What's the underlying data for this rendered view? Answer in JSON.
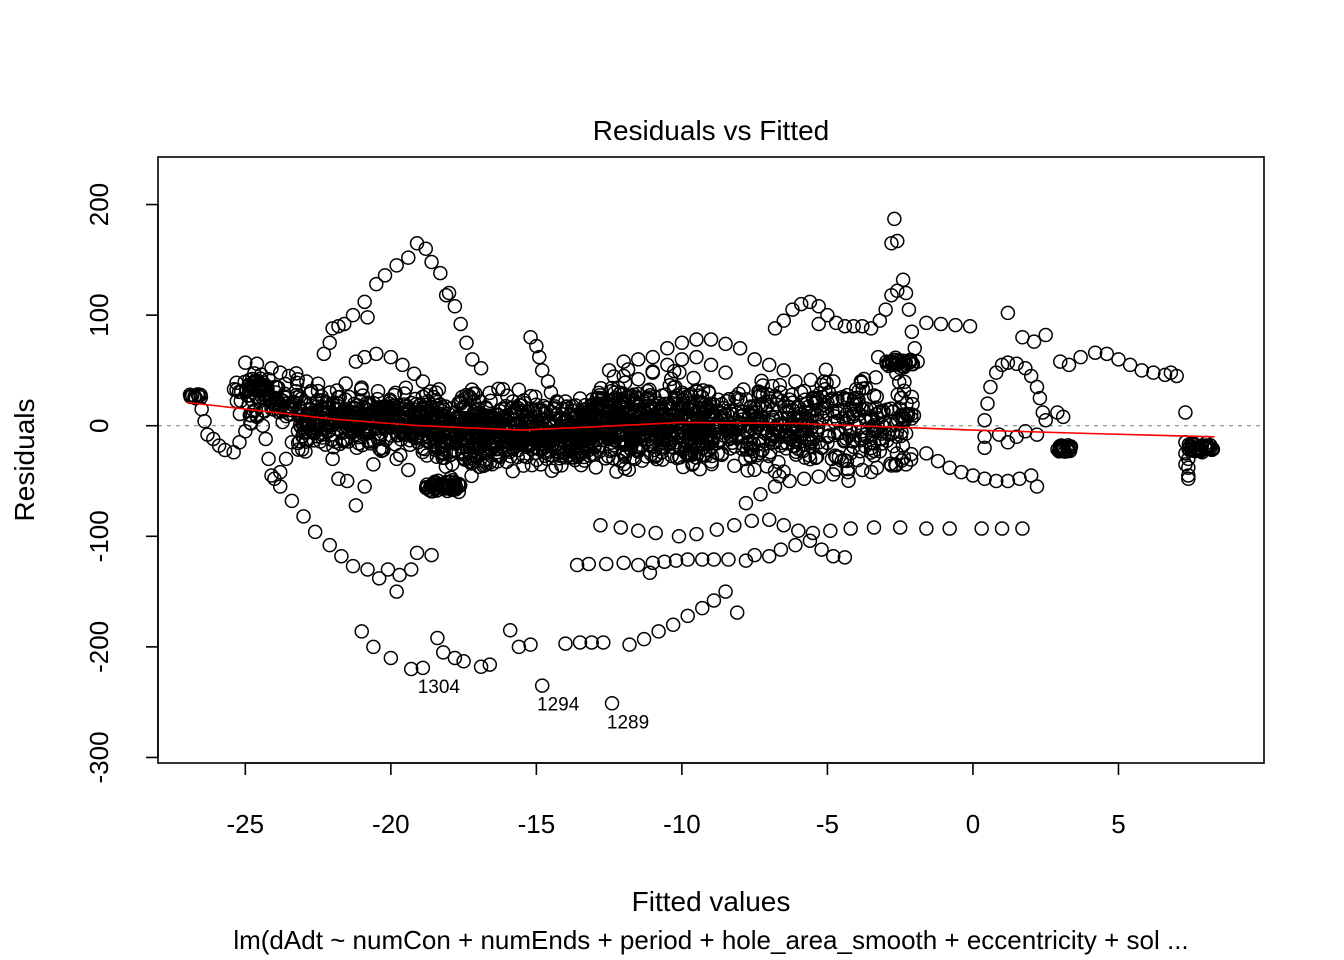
{
  "chart_data": {
    "type": "scatter",
    "title": "Residuals vs Fitted",
    "xlabel": "Fitted values",
    "ylabel": "Residuals",
    "subtitle": "lm(dAdt ~ numCon + numEnds + period + hole_area_smooth + eccentricity + sol ...",
    "xlim": [
      -28,
      10
    ],
    "ylim": [
      -305,
      243
    ],
    "x_ticks": [
      -25,
      -20,
      -15,
      -10,
      -5,
      0,
      5
    ],
    "x_tick_labels": [
      "-25",
      "-20",
      "-15",
      "-10",
      "-5",
      "0",
      "5"
    ],
    "y_ticks": [
      -300,
      -200,
      -100,
      0,
      100,
      200
    ],
    "y_tick_labels": [
      "-300",
      "-200",
      "-100",
      "0",
      "100",
      "200"
    ],
    "zero_line": true,
    "smooth_color": "#ff0000",
    "zero_line_color": "#9a9a9a",
    "smooth_line": [
      [
        -27.0,
        21
      ],
      [
        -25.0,
        15
      ],
      [
        -22.0,
        6
      ],
      [
        -19.0,
        0
      ],
      [
        -15.5,
        -4
      ],
      [
        -13.0,
        -1
      ],
      [
        -10.0,
        3
      ],
      [
        -6.0,
        2
      ],
      [
        -3.0,
        -1
      ],
      [
        0.0,
        -4
      ],
      [
        4.0,
        -7
      ],
      [
        8.3,
        -10
      ]
    ],
    "labeled_points": [
      {
        "x": -18.9,
        "y": -219,
        "label": "1304"
      },
      {
        "x": -14.8,
        "y": -235,
        "label": "1294"
      },
      {
        "x": -12.4,
        "y": -251,
        "label": "1289"
      }
    ],
    "series": [
      {
        "points": [
          [
            -21.0,
            -186
          ],
          [
            -20.6,
            -200
          ],
          [
            -20.0,
            -210
          ],
          [
            -19.3,
            -220
          ],
          [
            -18.4,
            -192
          ],
          [
            -17.5,
            -213
          ],
          [
            -16.9,
            -218
          ],
          [
            -16.6,
            -216
          ],
          [
            -15.9,
            -185
          ],
          [
            -15.6,
            -200
          ],
          [
            -15.2,
            -198
          ],
          [
            -14.0,
            -197
          ],
          [
            -13.5,
            -196
          ],
          [
            -13.1,
            -196
          ],
          [
            -12.7,
            -196
          ],
          [
            -11.8,
            -198
          ],
          [
            -11.3,
            -193
          ],
          [
            -10.8,
            -186
          ],
          [
            -10.3,
            -180
          ],
          [
            -9.8,
            -172
          ],
          [
            -9.3,
            -165
          ],
          [
            -8.9,
            -158
          ],
          [
            -8.5,
            -150
          ],
          [
            -8.1,
            -169
          ],
          [
            -18.2,
            -205
          ],
          [
            -17.8,
            -210
          ],
          [
            -19.8,
            -150
          ],
          [
            -19.3,
            -130
          ],
          [
            -19.1,
            -115
          ],
          [
            -18.6,
            -117
          ],
          [
            -19.7,
            -135
          ],
          [
            -20.1,
            -130
          ],
          [
            -20.4,
            -138
          ],
          [
            -20.8,
            -130
          ],
          [
            -21.3,
            -127
          ],
          [
            -21.7,
            -118
          ],
          [
            -22.1,
            -108
          ],
          [
            -22.6,
            -96
          ],
          [
            -23.0,
            -82
          ],
          [
            -23.4,
            -68
          ],
          [
            -23.8,
            -55
          ],
          [
            -13.6,
            -126
          ],
          [
            -13.2,
            -125
          ],
          [
            -12.6,
            -125
          ],
          [
            -12.0,
            -124
          ],
          [
            -11.5,
            -126
          ],
          [
            -11.0,
            -124
          ],
          [
            -10.6,
            -123
          ],
          [
            -10.2,
            -122
          ],
          [
            -9.8,
            -121
          ],
          [
            -9.3,
            -121
          ],
          [
            -8.9,
            -121
          ],
          [
            -8.4,
            -121
          ],
          [
            -7.8,
            -122
          ],
          [
            -7.5,
            -117
          ],
          [
            -7.0,
            -118
          ],
          [
            -6.6,
            -112
          ],
          [
            -6.1,
            -108
          ],
          [
            -5.6,
            -104
          ],
          [
            -5.2,
            -112
          ],
          [
            -4.8,
            -118
          ],
          [
            -4.4,
            -119
          ],
          [
            -11.1,
            -133
          ],
          [
            -6.5,
            -90
          ],
          [
            -6.0,
            -95
          ],
          [
            -5.5,
            -97
          ],
          [
            -4.9,
            -95
          ],
          [
            -4.2,
            -93
          ],
          [
            -3.4,
            -92
          ],
          [
            -2.5,
            -92
          ],
          [
            -1.6,
            -93
          ],
          [
            -0.8,
            -93
          ],
          [
            0.3,
            -93
          ],
          [
            1.0,
            -93
          ],
          [
            1.7,
            -93
          ],
          [
            -12.8,
            -90
          ],
          [
            -12.1,
            -92
          ],
          [
            -11.5,
            -95
          ],
          [
            -10.9,
            -97
          ],
          [
            -10.1,
            -100
          ],
          [
            -9.5,
            -98
          ],
          [
            -8.8,
            -94
          ],
          [
            -8.2,
            -90
          ],
          [
            -7.6,
            -86
          ],
          [
            -7.0,
            -85
          ],
          [
            -26.9,
            28
          ],
          [
            -26.7,
            25
          ],
          [
            -26.5,
            15
          ],
          [
            -26.4,
            4
          ],
          [
            -26.3,
            -8
          ],
          [
            -26.1,
            -12
          ],
          [
            -25.9,
            -18
          ],
          [
            -25.7,
            -22
          ],
          [
            -25.4,
            -24
          ],
          [
            -25.2,
            -15
          ],
          [
            -25.0,
            -5
          ],
          [
            -24.8,
            2
          ],
          [
            -24.6,
            8
          ],
          [
            -24.4,
            0
          ],
          [
            -24.3,
            -12
          ],
          [
            -24.2,
            -30
          ],
          [
            -24.1,
            -45
          ],
          [
            -24.0,
            -48
          ],
          [
            -23.8,
            -42
          ],
          [
            -23.6,
            -30
          ],
          [
            -23.4,
            -15
          ],
          [
            -25.0,
            57
          ],
          [
            -24.6,
            56
          ],
          [
            -24.1,
            52
          ],
          [
            -23.8,
            48
          ],
          [
            -23.5,
            45
          ],
          [
            -23.2,
            42
          ],
          [
            -22.9,
            40
          ],
          [
            -22.5,
            38
          ],
          [
            -22.1,
            30
          ],
          [
            -21.8,
            20
          ],
          [
            -21.6,
            15
          ],
          [
            -21.3,
            12
          ],
          [
            -21.0,
            8
          ],
          [
            -22.3,
            65
          ],
          [
            -22.1,
            75
          ],
          [
            -22.0,
            88
          ],
          [
            -21.8,
            90
          ],
          [
            -21.6,
            92
          ],
          [
            -21.3,
            100
          ],
          [
            -20.9,
            112
          ],
          [
            -20.5,
            128
          ],
          [
            -20.2,
            136
          ],
          [
            -19.8,
            145
          ],
          [
            -19.4,
            152
          ],
          [
            -19.1,
            165
          ],
          [
            -18.8,
            160
          ],
          [
            -18.6,
            148
          ],
          [
            -18.3,
            138
          ],
          [
            -18.0,
            120
          ],
          [
            -17.8,
            108
          ],
          [
            -17.6,
            92
          ],
          [
            -17.4,
            75
          ],
          [
            -17.2,
            60
          ],
          [
            -16.9,
            52
          ],
          [
            -20.8,
            98
          ],
          [
            -18.1,
            118
          ],
          [
            -21.2,
            58
          ],
          [
            -20.9,
            62
          ],
          [
            -20.5,
            65
          ],
          [
            -20.0,
            62
          ],
          [
            -19.6,
            55
          ],
          [
            -19.2,
            47
          ],
          [
            -18.9,
            40
          ],
          [
            -22.0,
            -30
          ],
          [
            -21.8,
            -48
          ],
          [
            -21.5,
            -50
          ],
          [
            -21.2,
            -72
          ],
          [
            -20.9,
            -55
          ],
          [
            -20.6,
            -35
          ],
          [
            -20.3,
            -20
          ],
          [
            -19.8,
            -30
          ],
          [
            -19.4,
            -40
          ],
          [
            -15.2,
            80
          ],
          [
            -15.0,
            72
          ],
          [
            -14.9,
            62
          ],
          [
            -14.8,
            50
          ],
          [
            -14.6,
            40
          ],
          [
            -14.5,
            30
          ],
          [
            -14.3,
            22
          ],
          [
            -14.1,
            15
          ],
          [
            -13.8,
            10
          ],
          [
            -13.5,
            8
          ],
          [
            -12.0,
            58
          ],
          [
            -11.5,
            60
          ],
          [
            -11.0,
            62
          ],
          [
            -10.5,
            70
          ],
          [
            -10.0,
            75
          ],
          [
            -9.5,
            78
          ],
          [
            -9.0,
            78
          ],
          [
            -8.5,
            74
          ],
          [
            -8.0,
            70
          ],
          [
            -7.5,
            60
          ],
          [
            -7.0,
            55
          ],
          [
            -6.5,
            50
          ],
          [
            -6.1,
            40
          ],
          [
            -5.7,
            20
          ],
          [
            -12.5,
            50
          ],
          [
            -12.0,
            45
          ],
          [
            -11.5,
            42
          ],
          [
            -11.0,
            48
          ],
          [
            -10.5,
            55
          ],
          [
            -10.0,
            60
          ],
          [
            -9.5,
            62
          ],
          [
            -9.0,
            55
          ],
          [
            -8.5,
            48
          ],
          [
            -6.8,
            88
          ],
          [
            -6.5,
            95
          ],
          [
            -6.2,
            105
          ],
          [
            -5.9,
            110
          ],
          [
            -5.6,
            112
          ],
          [
            -5.3,
            108
          ],
          [
            -5.0,
            100
          ],
          [
            -4.7,
            93
          ],
          [
            -4.4,
            90
          ],
          [
            -4.1,
            90
          ],
          [
            -3.8,
            90
          ],
          [
            -3.5,
            88
          ],
          [
            -3.2,
            95
          ],
          [
            -3.0,
            105
          ],
          [
            -2.8,
            118
          ],
          [
            -2.6,
            122
          ],
          [
            -2.4,
            132
          ],
          [
            -2.3,
            120
          ],
          [
            -2.2,
            105
          ],
          [
            -2.1,
            85
          ],
          [
            -2.0,
            70
          ],
          [
            -1.9,
            58
          ],
          [
            -5.3,
            92
          ],
          [
            -2.8,
            165
          ],
          [
            -2.6,
            167
          ],
          [
            -2.7,
            187
          ],
          [
            -1.6,
            93
          ],
          [
            -1.1,
            92
          ],
          [
            -0.6,
            91
          ],
          [
            -0.1,
            90
          ],
          [
            -7.8,
            -70
          ],
          [
            -7.3,
            -62
          ],
          [
            -6.8,
            -55
          ],
          [
            -6.3,
            -50
          ],
          [
            -5.8,
            -48
          ],
          [
            -5.3,
            -46
          ],
          [
            -4.8,
            -44
          ],
          [
            -4.3,
            -42
          ],
          [
            -3.8,
            -40
          ],
          [
            -3.3,
            -38
          ],
          [
            -2.8,
            -36
          ],
          [
            -2.3,
            -35
          ],
          [
            -1.6,
            -25
          ],
          [
            -1.2,
            -32
          ],
          [
            -0.8,
            -38
          ],
          [
            -0.4,
            -42
          ],
          [
            0.0,
            -45
          ],
          [
            0.4,
            -48
          ],
          [
            0.8,
            -50
          ],
          [
            1.2,
            -50
          ],
          [
            1.6,
            -48
          ],
          [
            2.0,
            -45
          ],
          [
            2.2,
            -55
          ],
          [
            0.4,
            -20
          ],
          [
            0.4,
            -10
          ],
          [
            0.4,
            5
          ],
          [
            0.5,
            20
          ],
          [
            0.6,
            35
          ],
          [
            0.8,
            48
          ],
          [
            1.0,
            55
          ],
          [
            1.2,
            57
          ],
          [
            1.5,
            56
          ],
          [
            1.8,
            52
          ],
          [
            2.0,
            45
          ],
          [
            2.2,
            35
          ],
          [
            2.3,
            25
          ],
          [
            2.4,
            12
          ],
          [
            2.5,
            5
          ],
          [
            2.2,
            -8
          ],
          [
            1.8,
            -5
          ],
          [
            1.5,
            -10
          ],
          [
            1.2,
            -15
          ],
          [
            0.9,
            -8
          ],
          [
            1.2,
            102
          ],
          [
            1.7,
            80
          ],
          [
            2.1,
            76
          ],
          [
            2.5,
            82
          ],
          [
            3.0,
            58
          ],
          [
            3.3,
            55
          ],
          [
            3.7,
            62
          ],
          [
            4.2,
            66
          ],
          [
            4.6,
            65
          ],
          [
            5.0,
            60
          ],
          [
            5.4,
            55
          ],
          [
            5.8,
            50
          ],
          [
            6.2,
            48
          ],
          [
            6.6,
            46
          ],
          [
            7.0,
            45
          ],
          [
            6.8,
            48
          ],
          [
            7.3,
            12
          ],
          [
            2.9,
            12
          ],
          [
            3.1,
            8
          ],
          [
            7.3,
            -15
          ],
          [
            7.3,
            -25
          ],
          [
            7.3,
            -35
          ],
          [
            7.4,
            -45
          ],
          [
            7.4,
            -48
          ],
          [
            7.4,
            -38
          ],
          [
            7.4,
            -30
          ]
        ]
      }
    ]
  }
}
